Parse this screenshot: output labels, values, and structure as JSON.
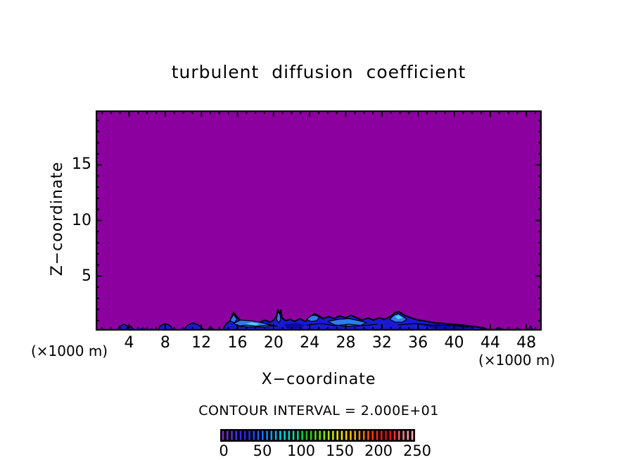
{
  "page": {
    "background": "#ffffff"
  },
  "chart_data": {
    "type": "heatmap",
    "subtype": "filled-contour-cross-section",
    "title": "turbulent diffusion coefficient",
    "xlabel": "X−coordinate",
    "ylabel": "Z−coordinate",
    "x_unit_label_left": "(×1000 m)",
    "x_unit_label_right": "(×1000 m)",
    "contour_interval_label": "CONTOUR INTERVAL = 2.000E+01",
    "contour_interval_value": 20.0,
    "grid": false,
    "axes": {
      "x": {
        "lim": [
          0.3,
          49.7
        ],
        "minor_step": 1,
        "major_step": 4,
        "ticks": [
          4,
          8,
          12,
          16,
          20,
          24,
          28,
          32,
          36,
          40,
          44,
          48
        ]
      },
      "y": {
        "lim": [
          0.1,
          19.9
        ],
        "minor_step": 1,
        "major_step": 5,
        "ticks": [
          5,
          10,
          15
        ]
      }
    },
    "colors": {
      "field_low_fill": "#8c00a0",
      "band_fill": "#1a1ad2",
      "band_inner_fill": "#2e7cf0",
      "band_highlight_fill": "#55c8ff",
      "band_dark_fill": "#0a0aa5",
      "contour_line": "#000000",
      "frame": "#000000"
    },
    "field_summary": "Field equals lowest contour bin (<20, purple) almost everywhere; enhanced values 20-80 (blue shades, black contour lines) in a shallow layer along the bottom surface, mainly between x=7 and x=28 (x1000 m), below z~2.",
    "features": [
      {
        "name": "band-main",
        "fill": "#1a1ad2",
        "stroke": "#000000",
        "sw": 2,
        "close": true,
        "points": [
          [
            180,
            313
          ],
          [
            185,
            304
          ],
          [
            191,
            299
          ],
          [
            196,
            287
          ],
          [
            201,
            294
          ],
          [
            208,
            300
          ],
          [
            216,
            303
          ],
          [
            224,
            300
          ],
          [
            232,
            302
          ],
          [
            240,
            298
          ],
          [
            248,
            301
          ],
          [
            253,
            298
          ],
          [
            257,
            292
          ],
          [
            259,
            283
          ],
          [
            261,
            291
          ],
          [
            263,
            284
          ],
          [
            265,
            295
          ],
          [
            270,
            299
          ],
          [
            276,
            297
          ],
          [
            283,
            300
          ],
          [
            290,
            296
          ],
          [
            298,
            300
          ],
          [
            305,
            294
          ],
          [
            311,
            289
          ],
          [
            317,
            292
          ],
          [
            323,
            296
          ],
          [
            331,
            293
          ],
          [
            339,
            296
          ],
          [
            347,
            292
          ],
          [
            355,
            295
          ],
          [
            363,
            291
          ],
          [
            371,
            295
          ],
          [
            379,
            298
          ],
          [
            387,
            295
          ],
          [
            395,
            298
          ],
          [
            403,
            295
          ],
          [
            411,
            297
          ],
          [
            419,
            293
          ],
          [
            425,
            288
          ],
          [
            431,
            286
          ],
          [
            437,
            290
          ],
          [
            443,
            293
          ],
          [
            451,
            296
          ],
          [
            459,
            298
          ],
          [
            471,
            300
          ],
          [
            483,
            302
          ],
          [
            495,
            303
          ],
          [
            507,
            304
          ],
          [
            521,
            305
          ],
          [
            536,
            307
          ],
          [
            551,
            309
          ],
          [
            560,
            313
          ]
        ]
      },
      {
        "name": "blob-a",
        "fill": "#1a1ad2",
        "stroke": "#000000",
        "sw": 1.5,
        "close": true,
        "points": [
          [
            31,
            313
          ],
          [
            34,
            307
          ],
          [
            40,
            304
          ],
          [
            46,
            307
          ],
          [
            44,
            310
          ],
          [
            50,
            307
          ],
          [
            55,
            313
          ]
        ]
      },
      {
        "name": "blob-b",
        "fill": "#1a1ad2",
        "stroke": "#000000",
        "sw": 1.5,
        "close": true,
        "points": [
          [
            88,
            313
          ],
          [
            92,
            306
          ],
          [
            99,
            303
          ],
          [
            106,
            306
          ],
          [
            110,
            313
          ]
        ]
      },
      {
        "name": "blob-c",
        "fill": "#1a1ad2",
        "stroke": "#000000",
        "sw": 1.5,
        "close": true,
        "points": [
          [
            125,
            313
          ],
          [
            130,
            306
          ],
          [
            138,
            302
          ],
          [
            146,
            305
          ],
          [
            151,
            309
          ],
          [
            155,
            313
          ]
        ]
      },
      {
        "name": "blob-d",
        "fill": "#1a1ad2",
        "stroke": "#000000",
        "sw": 1.5,
        "close": true,
        "points": [
          [
            159,
            313
          ],
          [
            163,
            307
          ],
          [
            169,
            313
          ]
        ]
      },
      {
        "name": "peak-inner",
        "fill": "#2e7cf0",
        "stroke": "#000000",
        "sw": 1.2,
        "close": true,
        "points": [
          [
            191,
            299
          ],
          [
            196,
            290
          ],
          [
            201,
            297
          ],
          [
            197,
            302
          ]
        ]
      },
      {
        "name": "inner-light-1",
        "fill": "#2e7cf0",
        "stroke": "#000000",
        "sw": 1.2,
        "close": true,
        "points": [
          [
            196,
            303
          ],
          [
            206,
            298
          ],
          [
            220,
            299
          ],
          [
            233,
            301
          ],
          [
            246,
            304
          ],
          [
            252,
            306
          ],
          [
            240,
            308
          ],
          [
            222,
            308
          ],
          [
            206,
            307
          ]
        ]
      },
      {
        "name": "inner-cyan-1",
        "fill": "#55c8ff",
        "stroke": "none",
        "sw": 0,
        "close": true,
        "points": [
          [
            212,
            304
          ],
          [
            222,
            301
          ],
          [
            232,
            303
          ],
          [
            228,
            306
          ],
          [
            216,
            306
          ]
        ]
      },
      {
        "name": "inner-light-2",
        "fill": "#2e7cf0",
        "stroke": "#000000",
        "sw": 1.2,
        "close": true,
        "points": [
          [
            300,
            297
          ],
          [
            306,
            292
          ],
          [
            312,
            291
          ],
          [
            318,
            294
          ],
          [
            314,
            299
          ],
          [
            306,
            300
          ]
        ]
      },
      {
        "name": "inner-light-3",
        "fill": "#2e7cf0",
        "stroke": "#000000",
        "sw": 1.2,
        "close": true,
        "points": [
          [
            330,
            300
          ],
          [
            345,
            297
          ],
          [
            360,
            296
          ],
          [
            375,
            299
          ],
          [
            385,
            302
          ],
          [
            375,
            306
          ],
          [
            355,
            307
          ],
          [
            340,
            305
          ]
        ]
      },
      {
        "name": "inner-light-4",
        "fill": "#2e7cf0",
        "stroke": "#000000",
        "sw": 1.2,
        "close": true,
        "points": [
          [
            418,
            297
          ],
          [
            424,
            291
          ],
          [
            430,
            289
          ],
          [
            437,
            293
          ],
          [
            442,
            297
          ],
          [
            436,
            301
          ],
          [
            426,
            301
          ]
        ]
      },
      {
        "name": "inner-cyan-2",
        "fill": "#55c8ff",
        "stroke": "none",
        "sw": 0,
        "close": true,
        "points": [
          [
            425,
            293
          ],
          [
            431,
            291
          ],
          [
            436,
            295
          ],
          [
            430,
            297
          ]
        ]
      },
      {
        "name": "spike-inner",
        "fill": "#2e7cf0",
        "stroke": "#000000",
        "sw": 1.2,
        "close": true,
        "points": [
          [
            257,
            297
          ],
          [
            259,
            286
          ],
          [
            262,
            290
          ],
          [
            263,
            297
          ],
          [
            260,
            302
          ]
        ]
      },
      {
        "name": "navy-1",
        "fill": "#0a0aa5",
        "stroke": "none",
        "sw": 0,
        "close": true,
        "points": [
          [
            268,
            304
          ],
          [
            285,
            302
          ],
          [
            298,
            305
          ],
          [
            290,
            310
          ],
          [
            272,
            310
          ]
        ]
      },
      {
        "name": "navy-2",
        "fill": "#0a0aa5",
        "stroke": "none",
        "sw": 0,
        "close": true,
        "points": [
          [
            460,
            304
          ],
          [
            490,
            303
          ],
          [
            520,
            307
          ],
          [
            540,
            309
          ],
          [
            520,
            311
          ],
          [
            480,
            310
          ]
        ]
      },
      {
        "name": "squiggle-1",
        "fill": "none",
        "stroke": "#000000",
        "sw": 1.2,
        "close": false,
        "points": [
          [
            200,
            307
          ],
          [
            215,
            305
          ],
          [
            230,
            307
          ],
          [
            245,
            305
          ],
          [
            258,
            307
          ]
        ]
      },
      {
        "name": "squiggle-2",
        "fill": "none",
        "stroke": "#000000",
        "sw": 1.2,
        "close": false,
        "points": [
          [
            300,
            305
          ],
          [
            320,
            303
          ],
          [
            340,
            306
          ],
          [
            360,
            304
          ],
          [
            380,
            306
          ],
          [
            400,
            304
          ]
        ]
      },
      {
        "name": "squiggle-3",
        "fill": "none",
        "stroke": "#000000",
        "sw": 1.2,
        "close": false,
        "points": [
          [
            430,
            305
          ],
          [
            455,
            303
          ],
          [
            480,
            306
          ],
          [
            505,
            305
          ],
          [
            530,
            308
          ]
        ]
      },
      {
        "name": "left-dot-1",
        "fill": "#12129b",
        "stroke": "none",
        "sw": 0,
        "close": true,
        "points": [
          [
            62,
            310
          ],
          [
            68,
            308
          ],
          [
            72,
            311
          ],
          [
            66,
            312
          ]
        ]
      },
      {
        "name": "left-dot-2",
        "fill": "#12129b",
        "stroke": "none",
        "sw": 0,
        "close": true,
        "points": [
          [
            76,
            311
          ],
          [
            80,
            309
          ],
          [
            83,
            312
          ]
        ]
      },
      {
        "name": "right-mark-1",
        "fill": "#1a1ad2",
        "stroke": "#000000",
        "sw": 1.2,
        "close": true,
        "points": [
          [
            566,
            313
          ],
          [
            571,
            309
          ],
          [
            578,
            311
          ],
          [
            584,
            313
          ]
        ]
      },
      {
        "name": "right-mark-2",
        "fill": "#1a1ad2",
        "stroke": "#000000",
        "sw": 1.2,
        "close": true,
        "points": [
          [
            594,
            313
          ],
          [
            599,
            310
          ],
          [
            605,
            312
          ],
          [
            609,
            313
          ]
        ]
      },
      {
        "name": "right-blip",
        "fill": "#1a1ad2",
        "stroke": "#000000",
        "sw": 1.2,
        "close": true,
        "points": [
          [
            615,
            313
          ],
          [
            618,
            306
          ],
          [
            622,
            313
          ]
        ]
      }
    ],
    "colorbar": {
      "ticks": [
        0,
        50,
        100,
        150,
        200,
        250
      ],
      "value_range": [
        0,
        252
      ],
      "background": "#000000",
      "num_lines": 44,
      "stops": [
        "#7d26cd",
        "#4b2bee",
        "#2323e6",
        "#1e5aff",
        "#00a0ff",
        "#00d2f0",
        "#00dcb4",
        "#00c828",
        "#5ae600",
        "#b4e600",
        "#f0e600",
        "#ffb400",
        "#ff6400",
        "#ff2800",
        "#e60000",
        "#ff647d",
        "#ffaab4"
      ]
    }
  }
}
